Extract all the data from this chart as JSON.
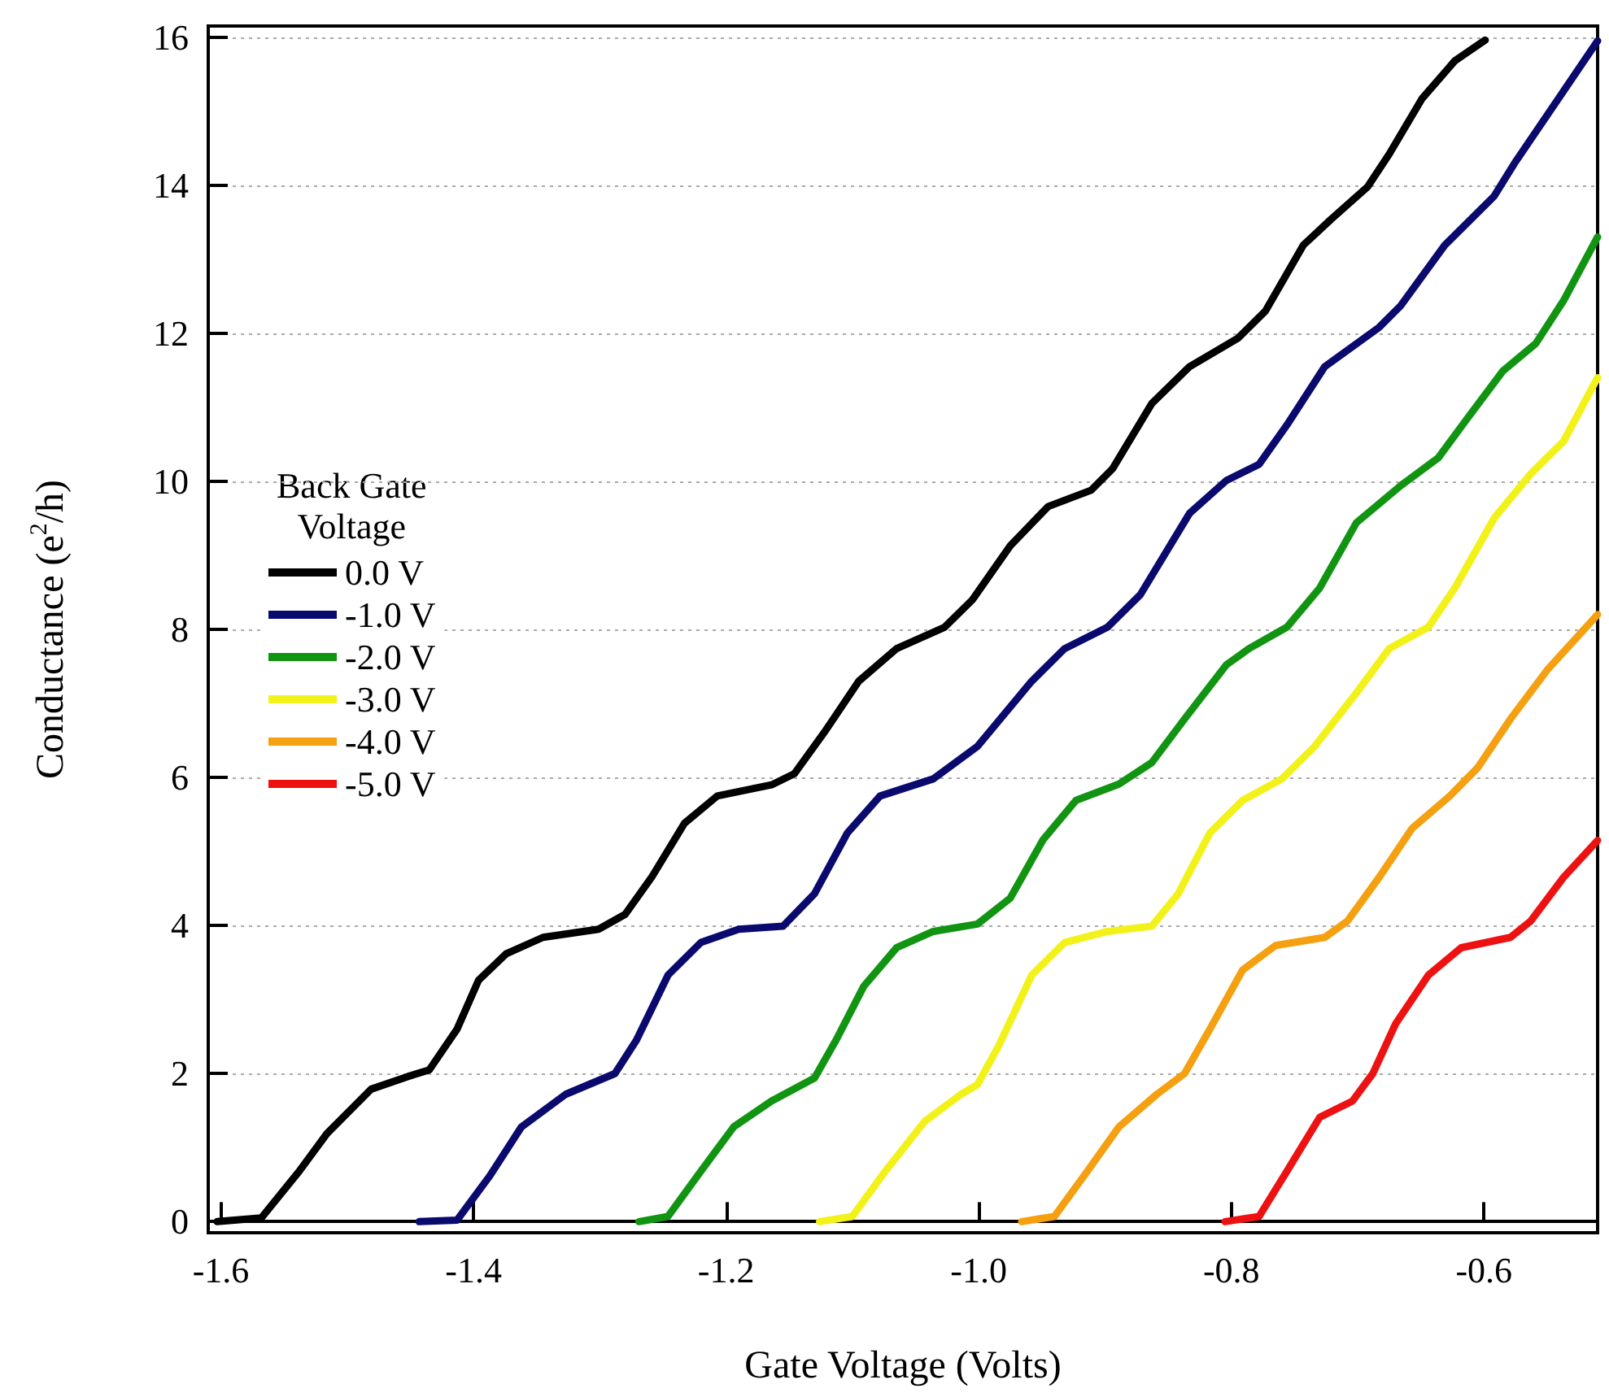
{
  "chart_data": {
    "type": "line",
    "xlabel": "Gate Voltage (Volts)",
    "ylabel": "Conductance (e$^{2}$/h)",
    "legend_title": "Back Gate\nVoltage",
    "xlim": [
      -1.61,
      -0.51
    ],
    "ylim": [
      -0.15,
      16.15
    ],
    "xticks": [
      {
        "value": -1.6,
        "label": "-1.6"
      },
      {
        "value": -1.4,
        "label": "-1.4"
      },
      {
        "value": -1.2,
        "label": "-1.2"
      },
      {
        "value": -1.0,
        "label": "-1.0"
      },
      {
        "value": -0.8,
        "label": "-0.8"
      },
      {
        "value": -0.6,
        "label": "-0.6"
      }
    ],
    "yticks": [
      0,
      2,
      4,
      6,
      8,
      10,
      12,
      14,
      16
    ],
    "grid": "y",
    "legend": "left",
    "marker": "none",
    "line_style": "solid",
    "series": [
      {
        "name": "0.0 V",
        "color": "#000000",
        "x": [
          -1.603,
          -1.568,
          -1.538,
          -1.516,
          -1.481,
          -1.452,
          -1.435,
          -1.413,
          -1.396,
          -1.374,
          -1.345,
          -1.301,
          -1.28,
          -1.259,
          -1.233,
          -1.207,
          -1.164,
          -1.146,
          -1.121,
          -1.095,
          -1.065,
          -1.027,
          -1.005,
          -0.975,
          -0.945,
          -0.911,
          -0.894,
          -0.863,
          -0.833,
          -0.795,
          -0.773,
          -0.743,
          -0.721,
          -0.692,
          -0.675,
          -0.649,
          -0.623,
          -0.599
        ],
        "values": [
          0,
          0.05,
          0.68,
          1.19,
          1.79,
          1.96,
          2.05,
          2.6,
          3.26,
          3.62,
          3.84,
          3.95,
          4.15,
          4.65,
          5.38,
          5.75,
          5.9,
          6.05,
          6.64,
          7.3,
          7.74,
          8.03,
          8.4,
          9.13,
          9.66,
          9.88,
          10.17,
          11.05,
          11.55,
          11.93,
          12.3,
          13.19,
          13.54,
          13.98,
          14.42,
          15.17,
          15.68,
          15.96
        ]
      },
      {
        "name": "-1.0 V",
        "color": "#0a0a6e",
        "x": [
          -1.443,
          -1.413,
          -1.387,
          -1.362,
          -1.327,
          -1.288,
          -1.271,
          -1.246,
          -1.22,
          -1.19,
          -1.155,
          -1.13,
          -1.104,
          -1.078,
          -1.036,
          -1.001,
          -0.958,
          -0.932,
          -0.898,
          -0.872,
          -0.833,
          -0.804,
          -0.778,
          -0.756,
          -0.726,
          -0.683,
          -0.666,
          -0.631,
          -0.592,
          -0.576,
          -0.541,
          -0.51
        ],
        "values": [
          0,
          0.02,
          0.62,
          1.28,
          1.72,
          2,
          2.45,
          3.33,
          3.77,
          3.95,
          3.99,
          4.43,
          5.25,
          5.75,
          5.98,
          6.42,
          7.3,
          7.74,
          8.03,
          8.47,
          9.57,
          10.01,
          10.23,
          10.76,
          11.55,
          12.08,
          12.37,
          13.19,
          13.85,
          14.29,
          15.17,
          15.95
        ]
      },
      {
        "name": "-2.0 V",
        "color": "#119411",
        "x": [
          -1.269,
          -1.246,
          -1.22,
          -1.194,
          -1.164,
          -1.13,
          -1.113,
          -1.091,
          -1.065,
          -1.036,
          -1.001,
          -0.975,
          -0.949,
          -0.923,
          -0.889,
          -0.863,
          -0.837,
          -0.804,
          -0.786,
          -0.756,
          -0.73,
          -0.701,
          -0.666,
          -0.636,
          -0.614,
          -0.585,
          -0.559,
          -0.537,
          -0.51
        ],
        "values": [
          0,
          0.07,
          0.68,
          1.28,
          1.63,
          1.94,
          2.45,
          3.18,
          3.7,
          3.92,
          4.02,
          4.37,
          5.16,
          5.69,
          5.91,
          6.2,
          6.79,
          7.52,
          7.74,
          8.03,
          8.56,
          9.44,
          9.94,
          10.32,
          10.83,
          11.49,
          11.86,
          12.44,
          13.3
        ]
      },
      {
        "name": "-3.0 V",
        "color": "#f2f21a",
        "x": [
          -1.126,
          -1.1,
          -1.074,
          -1.043,
          -1.014,
          -1.001,
          -0.984,
          -0.958,
          -0.932,
          -0.898,
          -0.863,
          -0.842,
          -0.817,
          -0.791,
          -0.76,
          -0.734,
          -0.701,
          -0.675,
          -0.644,
          -0.623,
          -0.592,
          -0.563,
          -0.537,
          -0.51
        ],
        "values": [
          0,
          0.07,
          0.68,
          1.35,
          1.72,
          1.85,
          2.38,
          3.33,
          3.77,
          3.92,
          3.99,
          4.43,
          5.25,
          5.69,
          5.98,
          6.42,
          7.14,
          7.74,
          8.03,
          8.56,
          9.5,
          10.1,
          10.54,
          11.4
        ]
      },
      {
        "name": "-4.0 V",
        "color": "#f5a010",
        "x": [
          -0.966,
          -0.94,
          -0.914,
          -0.889,
          -0.859,
          -0.837,
          -0.817,
          -0.791,
          -0.765,
          -0.726,
          -0.708,
          -0.683,
          -0.657,
          -0.627,
          -0.605,
          -0.579,
          -0.55,
          -0.51
        ],
        "values": [
          0,
          0.07,
          0.68,
          1.28,
          1.72,
          2,
          2.6,
          3.4,
          3.73,
          3.84,
          4.06,
          4.65,
          5.31,
          5.75,
          6.13,
          6.79,
          7.45,
          8.2
        ]
      },
      {
        "name": "-5.0 V",
        "color": "#ee1111",
        "x": [
          -0.805,
          -0.778,
          -0.756,
          -0.73,
          -0.704,
          -0.688,
          -0.67,
          -0.644,
          -0.618,
          -0.579,
          -0.563,
          -0.537,
          -0.51
        ],
        "values": [
          0,
          0.07,
          0.68,
          1.41,
          1.63,
          2,
          2.67,
          3.33,
          3.7,
          3.84,
          4.06,
          4.65,
          5.15
        ]
      }
    ]
  }
}
